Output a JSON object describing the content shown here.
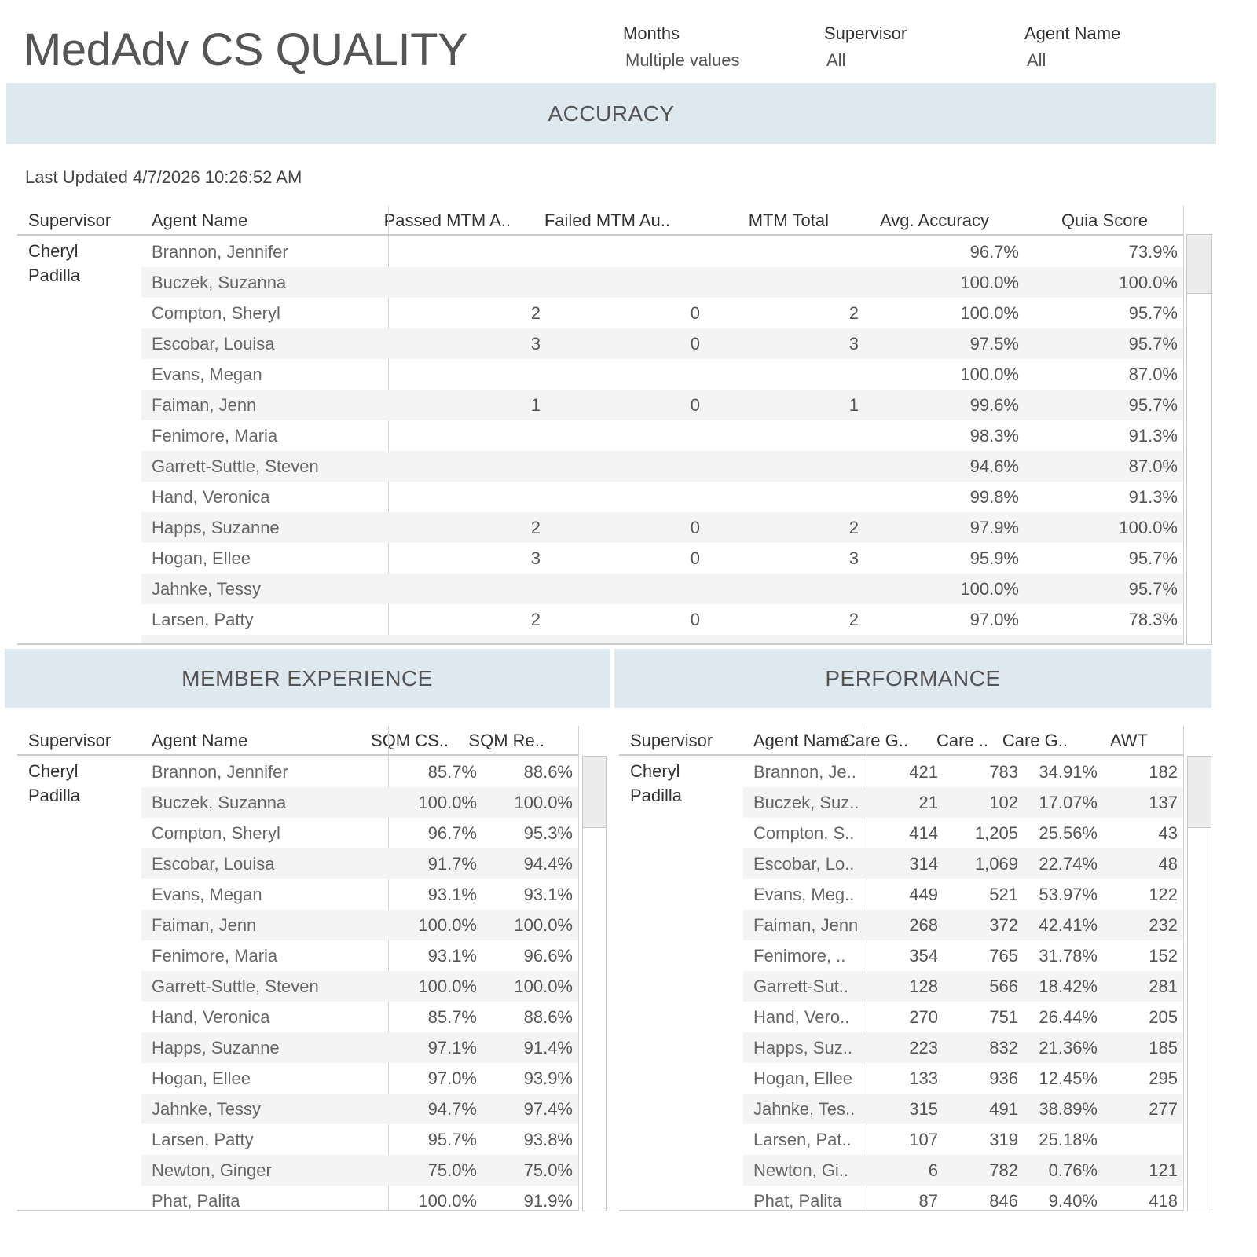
{
  "header": {
    "title": "MedAdv CS QUALITY",
    "filters": [
      {
        "label": "Months",
        "value": "Multiple values"
      },
      {
        "label": "Supervisor",
        "value": "All"
      },
      {
        "label": "Agent Name",
        "value": "All"
      }
    ]
  },
  "colors": {
    "band": "#dde9ef",
    "row_alt": "#f4f4f4"
  },
  "accuracy": {
    "band_title": "ACCURACY",
    "last_updated": "Last Updated 4/7/2026 10:26:52 AM",
    "columns": [
      "Supervisor",
      "Agent Name",
      "Passed MTM A..",
      "Failed MTM Au..",
      "MTM Total",
      "Avg. Accuracy",
      "Quia Score"
    ],
    "supervisor": "Cheryl Padilla",
    "rows": [
      [
        "Brannon, Jennifer",
        "",
        "",
        "",
        "96.7%",
        "73.9%"
      ],
      [
        "Buczek, Suzanna",
        "",
        "",
        "",
        "100.0%",
        "100.0%"
      ],
      [
        "Compton, Sheryl",
        "2",
        "0",
        "2",
        "100.0%",
        "95.7%"
      ],
      [
        "Escobar, Louisa",
        "3",
        "0",
        "3",
        "97.5%",
        "95.7%"
      ],
      [
        "Evans, Megan",
        "",
        "",
        "",
        "100.0%",
        "87.0%"
      ],
      [
        "Faiman, Jenn",
        "1",
        "0",
        "1",
        "99.6%",
        "95.7%"
      ],
      [
        "Fenimore, Maria",
        "",
        "",
        "",
        "98.3%",
        "91.3%"
      ],
      [
        "Garrett-Suttle, Steven",
        "",
        "",
        "",
        "94.6%",
        "87.0%"
      ],
      [
        "Hand, Veronica",
        "",
        "",
        "",
        "99.8%",
        "91.3%"
      ],
      [
        "Happs, Suzanne",
        "2",
        "0",
        "2",
        "97.9%",
        "100.0%"
      ],
      [
        "Hogan, Ellee",
        "3",
        "0",
        "3",
        "95.9%",
        "95.7%"
      ],
      [
        "Jahnke, Tessy",
        "",
        "",
        "",
        "100.0%",
        "95.7%"
      ],
      [
        "Larsen, Patty",
        "2",
        "0",
        "2",
        "97.0%",
        "78.3%"
      ]
    ]
  },
  "member_experience": {
    "band_title": "MEMBER EXPERIENCE",
    "columns": [
      "Supervisor",
      "Agent Name",
      "SQM CS..",
      "SQM Re.."
    ],
    "supervisor": "Cheryl Padilla",
    "rows": [
      [
        "Brannon, Jennifer",
        "85.7%",
        "88.6%"
      ],
      [
        "Buczek, Suzanna",
        "100.0%",
        "100.0%"
      ],
      [
        "Compton, Sheryl",
        "96.7%",
        "95.3%"
      ],
      [
        "Escobar, Louisa",
        "91.7%",
        "94.4%"
      ],
      [
        "Evans, Megan",
        "93.1%",
        "93.1%"
      ],
      [
        "Faiman, Jenn",
        "100.0%",
        "100.0%"
      ],
      [
        "Fenimore, Maria",
        "93.1%",
        "96.6%"
      ],
      [
        "Garrett-Suttle, Steven",
        "100.0%",
        "100.0%"
      ],
      [
        "Hand, Veronica",
        "85.7%",
        "88.6%"
      ],
      [
        "Happs, Suzanne",
        "97.1%",
        "91.4%"
      ],
      [
        "Hogan, Ellee",
        "97.0%",
        "93.9%"
      ],
      [
        "Jahnke, Tessy",
        "94.7%",
        "97.4%"
      ],
      [
        "Larsen, Patty",
        "95.7%",
        "93.8%"
      ],
      [
        "Newton, Ginger",
        "75.0%",
        "75.0%"
      ],
      [
        "Phat, Palita",
        "100.0%",
        "91.9%"
      ]
    ]
  },
  "performance": {
    "band_title": "PERFORMANCE",
    "columns": [
      "Supervisor",
      "Agent Name",
      "Care G..",
      "Care ..",
      "Care G..",
      "AWT"
    ],
    "supervisor": "Cheryl Padilla",
    "rows": [
      [
        "Brannon, Je..",
        "421",
        "783",
        "34.91%",
        "182"
      ],
      [
        "Buczek, Suz..",
        "21",
        "102",
        "17.07%",
        "137"
      ],
      [
        "Compton, S..",
        "414",
        "1,205",
        "25.56%",
        "43"
      ],
      [
        "Escobar, Lo..",
        "314",
        "1,069",
        "22.74%",
        "48"
      ],
      [
        "Evans, Meg..",
        "449",
        "521",
        "53.97%",
        "122"
      ],
      [
        "Faiman, Jenn",
        "268",
        "372",
        "42.41%",
        "232"
      ],
      [
        "Fenimore, ..",
        "354",
        "765",
        "31.78%",
        "152"
      ],
      [
        "Garrett-Sut..",
        "128",
        "566",
        "18.42%",
        "281"
      ],
      [
        "Hand, Vero..",
        "270",
        "751",
        "26.44%",
        "205"
      ],
      [
        "Happs, Suz..",
        "223",
        "832",
        "21.36%",
        "185"
      ],
      [
        "Hogan, Ellee",
        "133",
        "936",
        "12.45%",
        "295"
      ],
      [
        "Jahnke, Tes..",
        "315",
        "491",
        "38.89%",
        "277"
      ],
      [
        "Larsen, Pat..",
        "107",
        "319",
        "25.18%",
        ""
      ],
      [
        "Newton, Gi..",
        "6",
        "782",
        "0.76%",
        "121"
      ],
      [
        "Phat, Palita",
        "87",
        "846",
        "9.40%",
        "418"
      ]
    ]
  }
}
